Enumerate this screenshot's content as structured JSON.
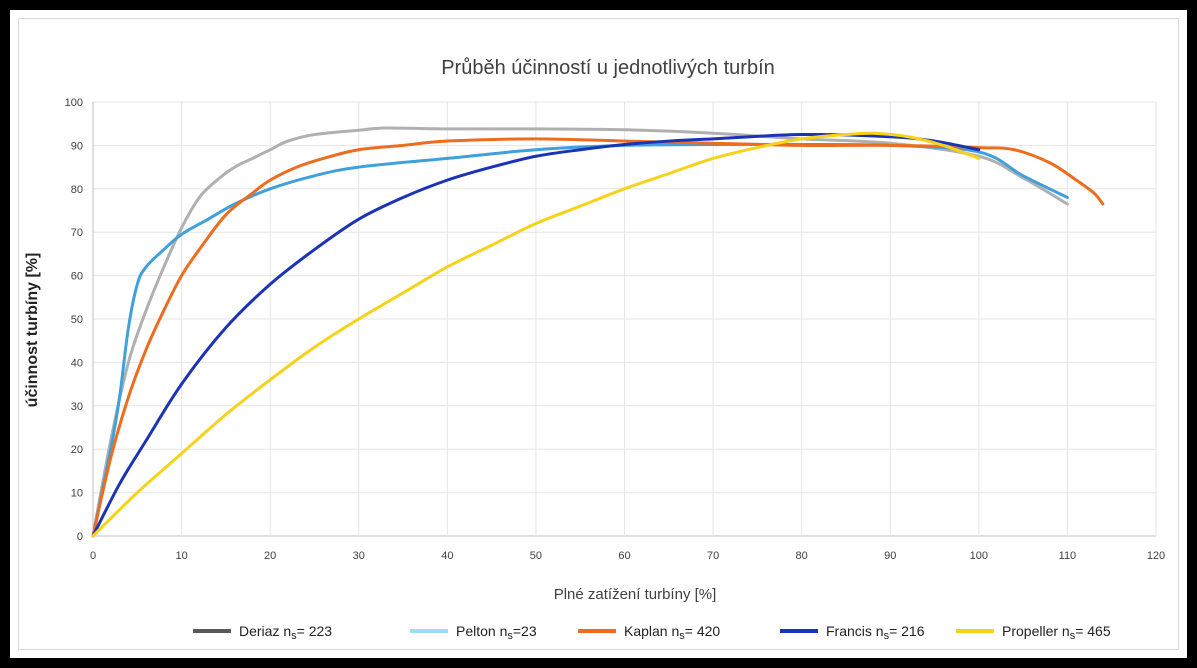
{
  "chart_data": {
    "type": "line",
    "title": "Průběh účinností u jednotlivých turbín",
    "xlabel": "Plné zatížení turbíny [%]",
    "ylabel": "účinnost turbíny [%]",
    "xlim": [
      0,
      120
    ],
    "ylim": [
      0,
      100
    ],
    "xticks": [
      "0",
      "10",
      "20",
      "30",
      "40",
      "50",
      "60",
      "70",
      "80",
      "90",
      "100",
      "110",
      "120"
    ],
    "yticks": [
      "0",
      "10",
      "20",
      "30",
      "40",
      "50",
      "60",
      "70",
      "80",
      "90",
      "100"
    ],
    "grid": true,
    "legend_position": "bottom",
    "series": [
      {
        "name": "Deriaz",
        "legend_sub": "s",
        "legend_rest": "= 223",
        "color": "#b0b0b0",
        "legend_color": "#595959",
        "points": [
          [
            0,
            0
          ],
          [
            2,
            22
          ],
          [
            4,
            40
          ],
          [
            6,
            52
          ],
          [
            8,
            62
          ],
          [
            10,
            71
          ],
          [
            12,
            78
          ],
          [
            14,
            82
          ],
          [
            16,
            85
          ],
          [
            18,
            87
          ],
          [
            20,
            89
          ],
          [
            22,
            91
          ],
          [
            25,
            92.5
          ],
          [
            30,
            93.5
          ],
          [
            33,
            94
          ],
          [
            40,
            93.8
          ],
          [
            50,
            93.8
          ],
          [
            60,
            93.6
          ],
          [
            70,
            92.8
          ],
          [
            80,
            91.5
          ],
          [
            90,
            90.5
          ],
          [
            100,
            87.5
          ],
          [
            105,
            82.5
          ],
          [
            110,
            76.5
          ]
        ]
      },
      {
        "name": "Pelton",
        "legend_sub": "s",
        "legend_rest": "=23",
        "color": "#3fa0dc",
        "legend_color": "#9ddcf2",
        "points": [
          [
            0,
            0
          ],
          [
            2,
            20
          ],
          [
            3,
            32
          ],
          [
            4,
            48
          ],
          [
            5,
            58
          ],
          [
            6,
            62
          ],
          [
            8,
            66
          ],
          [
            10,
            69.5
          ],
          [
            13,
            73
          ],
          [
            16,
            76.5
          ],
          [
            20,
            80
          ],
          [
            25,
            83
          ],
          [
            30,
            85
          ],
          [
            40,
            87
          ],
          [
            50,
            89
          ],
          [
            60,
            90
          ],
          [
            70,
            90.2
          ],
          [
            80,
            90.2
          ],
          [
            90,
            90
          ],
          [
            100,
            88.5
          ],
          [
            105,
            83
          ],
          [
            110,
            78
          ]
        ]
      },
      {
        "name": "Kaplan",
        "legend_sub": "s",
        "legend_rest": "= 420",
        "color": "#ed6c1e",
        "legend_color": "#ed6c1e",
        "points": [
          [
            0,
            0
          ],
          [
            2,
            18
          ],
          [
            4,
            32
          ],
          [
            6,
            43
          ],
          [
            8,
            52
          ],
          [
            10,
            60
          ],
          [
            12,
            66
          ],
          [
            15,
            74
          ],
          [
            18,
            79
          ],
          [
            20,
            82
          ],
          [
            23,
            85
          ],
          [
            26,
            87
          ],
          [
            30,
            89
          ],
          [
            35,
            90
          ],
          [
            40,
            91
          ],
          [
            50,
            91.5
          ],
          [
            60,
            91
          ],
          [
            70,
            90.5
          ],
          [
            80,
            90
          ],
          [
            90,
            90
          ],
          [
            100,
            89.5
          ],
          [
            104,
            89
          ],
          [
            108,
            86
          ],
          [
            111,
            82
          ],
          [
            113,
            79
          ],
          [
            114,
            76.5
          ]
        ]
      },
      {
        "name": "Francis",
        "legend_sub": "s",
        "legend_rest": "= 216",
        "color": "#1a34b5",
        "legend_color": "#1a34b5",
        "points": [
          [
            0,
            0
          ],
          [
            3,
            12
          ],
          [
            6,
            22
          ],
          [
            10,
            35
          ],
          [
            15,
            48
          ],
          [
            20,
            58
          ],
          [
            25,
            66
          ],
          [
            30,
            73
          ],
          [
            35,
            78
          ],
          [
            40,
            82
          ],
          [
            45,
            85
          ],
          [
            50,
            87.5
          ],
          [
            55,
            89
          ],
          [
            60,
            90.2
          ],
          [
            65,
            91
          ],
          [
            70,
            91.5
          ],
          [
            80,
            92.5
          ],
          [
            90,
            92
          ],
          [
            95,
            91
          ],
          [
            100,
            89
          ]
        ]
      },
      {
        "name": "Propeller",
        "legend_sub": "s",
        "legend_rest": "= 465",
        "color": "#f7d21a",
        "legend_color": "#f7d21a",
        "points": [
          [
            0,
            0
          ],
          [
            5,
            10
          ],
          [
            10,
            19
          ],
          [
            15,
            28
          ],
          [
            20,
            36
          ],
          [
            25,
            43.5
          ],
          [
            30,
            50
          ],
          [
            35,
            56
          ],
          [
            40,
            62
          ],
          [
            45,
            67
          ],
          [
            50,
            72
          ],
          [
            55,
            76
          ],
          [
            60,
            80
          ],
          [
            65,
            83.5
          ],
          [
            70,
            87
          ],
          [
            75,
            89.5
          ],
          [
            80,
            91.5
          ],
          [
            85,
            92.5
          ],
          [
            88,
            92.8
          ],
          [
            92,
            92
          ],
          [
            96,
            90
          ],
          [
            100,
            87
          ]
        ]
      }
    ]
  }
}
